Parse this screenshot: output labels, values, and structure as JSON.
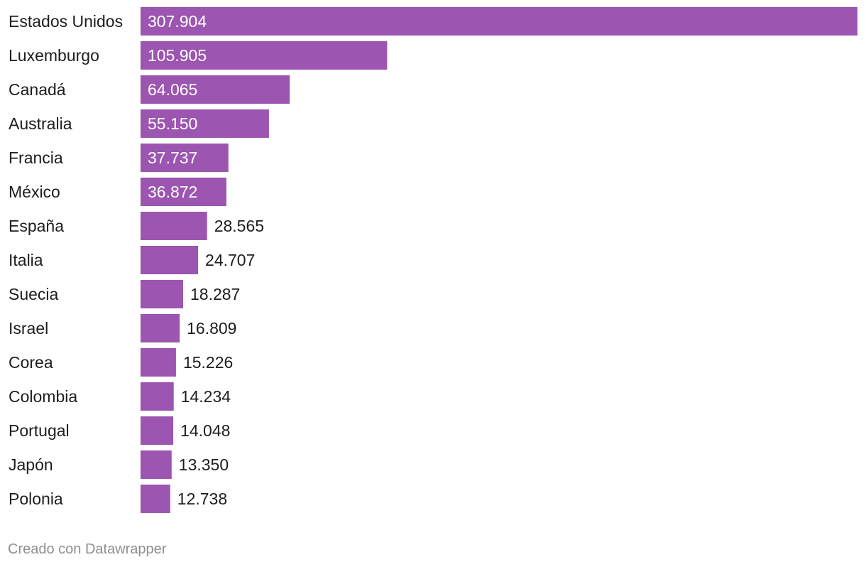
{
  "chart_data": {
    "type": "bar",
    "orientation": "horizontal",
    "categories": [
      "Estados Unidos",
      "Luxemburgo",
      "Canadá",
      "Australia",
      "Francia",
      "México",
      "España",
      "Italia",
      "Suecia",
      "Israel",
      "Corea",
      "Colombia",
      "Portugal",
      "Japón",
      "Polonia"
    ],
    "values": [
      307904,
      105905,
      64065,
      55150,
      37737,
      36872,
      28565,
      24707,
      18287,
      16809,
      15226,
      14234,
      14048,
      13350,
      12738
    ],
    "value_labels": [
      "307.904",
      "105.905",
      "64.065",
      "55.150",
      "37.737",
      "36.872",
      "28.565",
      "24.707",
      "18.287",
      "16.809",
      "15.226",
      "14.234",
      "14.048",
      "13.350",
      "12.738"
    ],
    "title": "",
    "xlabel": "",
    "ylabel": "",
    "xlim": [
      0,
      307904
    ],
    "grid": false,
    "legend": "none",
    "bar_color": "#9c55b0",
    "label_inside_color": "#ffffff",
    "label_outside_color": "#1d1d1d"
  },
  "footer": {
    "credit": "Creado con Datawrapper"
  }
}
